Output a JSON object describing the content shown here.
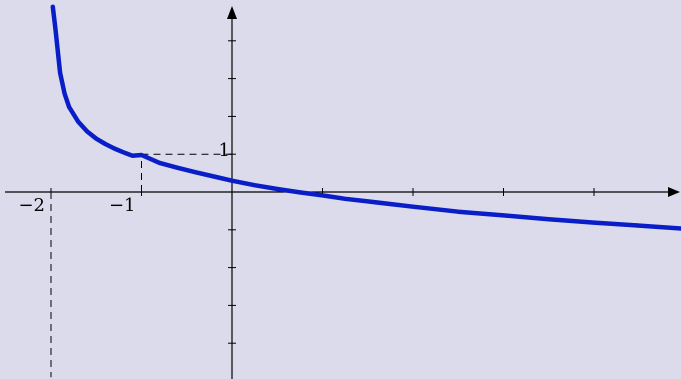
{
  "background_color": "#dcdbec",
  "chart_data": {
    "type": "line",
    "title": "",
    "xlabel": "",
    "ylabel": "",
    "xlim": [
      -2.0,
      5.0
    ],
    "ylim": [
      -4.9,
      4.9
    ],
    "grid": false,
    "axis_color": "#000000",
    "x_ticks": [
      -2,
      -1,
      1,
      2,
      3,
      4
    ],
    "y_ticks": [
      -4,
      -3,
      -2,
      -1,
      1,
      2,
      3,
      4
    ],
    "tick_labels": [
      {
        "axis": "x",
        "value": -2,
        "text": "−2"
      },
      {
        "axis": "x",
        "value": -1,
        "text": "−1"
      },
      {
        "axis": "y",
        "value": 1,
        "text": "1"
      }
    ],
    "series": [
      {
        "color": "#0a1ec8",
        "x": [
          -1.98,
          -1.95,
          -1.9,
          -1.85,
          -1.8,
          -1.7,
          -1.6,
          -1.5,
          -1.4,
          -1.3,
          -1.2,
          -1.1,
          -1.0,
          -0.8,
          -0.6,
          -0.4,
          -0.2,
          0.0,
          0.25,
          0.5,
          0.75,
          1.0,
          1.25,
          1.5,
          2.0,
          2.5,
          3.0,
          3.5,
          4.0,
          4.5,
          5.0
        ],
        "y": [
          4.9,
          4.3,
          3.15,
          2.6,
          2.25,
          1.86,
          1.6,
          1.41,
          1.27,
          1.15,
          1.05,
          0.96,
          0.98,
          0.77,
          0.64,
          0.52,
          0.41,
          0.3,
          0.18,
          0.08,
          -0.01,
          -0.09,
          -0.18,
          -0.25,
          -0.39,
          -0.52,
          -0.62,
          -0.72,
          -0.81,
          -0.89,
          -0.97
        ]
      }
    ],
    "guides": [
      {
        "from": [
          -2,
          0
        ],
        "to": [
          -2,
          -4.9
        ],
        "style": "dashed"
      },
      {
        "from": [
          -1,
          0
        ],
        "to": [
          -1,
          1
        ],
        "style": "dashed"
      },
      {
        "from": [
          -1,
          1
        ],
        "to": [
          0,
          1
        ],
        "style": "dashed"
      }
    ]
  }
}
